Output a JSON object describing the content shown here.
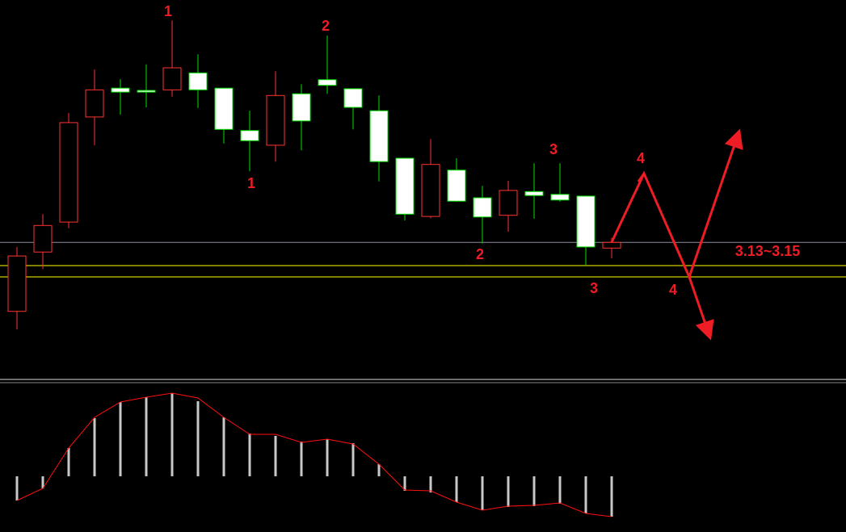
{
  "chart_data": [
    {
      "type": "candlestick",
      "open": [
        3.069,
        3.174,
        3.227,
        3.413,
        3.464,
        3.46,
        3.461,
        3.491,
        3.464,
        3.389,
        3.363,
        3.454,
        3.479,
        3.463,
        3.424,
        3.34,
        3.237,
        3.319,
        3.27,
        3.239,
        3.281,
        3.276,
        3.273,
        3.181
      ],
      "high": [
        3.183,
        3.241,
        3.42,
        3.497,
        3.48,
        3.506,
        3.584,
        3.524,
        3.464,
        3.424,
        3.494,
        3.471,
        3.557,
        3.463,
        3.451,
        3.34,
        3.374,
        3.34,
        3.291,
        3.3,
        3.331,
        3.331,
        3.274,
        3.199
      ],
      "low": [
        3.037,
        3.144,
        3.216,
        3.363,
        3.417,
        3.43,
        3.449,
        3.429,
        3.366,
        3.317,
        3.334,
        3.354,
        3.454,
        3.391,
        3.299,
        3.23,
        3.234,
        3.263,
        3.189,
        3.21,
        3.233,
        3.263,
        3.15,
        3.163
      ],
      "close": [
        3.167,
        3.221,
        3.403,
        3.461,
        3.457,
        3.457,
        3.5,
        3.461,
        3.391,
        3.371,
        3.451,
        3.406,
        3.469,
        3.43,
        3.334,
        3.241,
        3.329,
        3.264,
        3.236,
        3.283,
        3.274,
        3.266,
        3.183,
        3.191
      ],
      "up_color": "#ff3232",
      "down_color": "#ffffff",
      "down_edge_color": "#00e000",
      "ylim": [
        2.96,
        3.62
      ],
      "hlines": [
        {
          "value": 3.191,
          "color": "#8c8c9c"
        },
        {
          "value": 3.15,
          "color": "#ffff00"
        },
        {
          "value": 3.13,
          "color": "#ffff00"
        }
      ],
      "annotations": [
        "1",
        "1",
        "2",
        "2",
        "3",
        "3",
        "4",
        "4",
        "3.13~3.15"
      ],
      "annotation_color": "#ee1c24"
    },
    {
      "type": "macd",
      "values": [
        -0.3,
        -0.15,
        0.35,
        0.72,
        0.92,
        0.98,
        1.03,
        0.93,
        0.73,
        0.53,
        0.5,
        0.43,
        0.46,
        0.41,
        0.15,
        -0.18,
        -0.2,
        -0.32,
        -0.42,
        -0.38,
        -0.37,
        -0.34,
        -0.46,
        -0.5
      ],
      "line": [
        -0.3,
        -0.15,
        0.35,
        0.73,
        0.92,
        0.98,
        1.03,
        0.97,
        0.73,
        0.52,
        0.52,
        0.42,
        0.46,
        0.4,
        0.15,
        -0.17,
        -0.18,
        -0.32,
        -0.42,
        -0.37,
        -0.36,
        -0.33,
        -0.46,
        -0.5
      ],
      "bar_color": "#c8c8c8",
      "line_color": "#ff1010",
      "ylim": [
        -0.7,
        1.15
      ]
    }
  ]
}
